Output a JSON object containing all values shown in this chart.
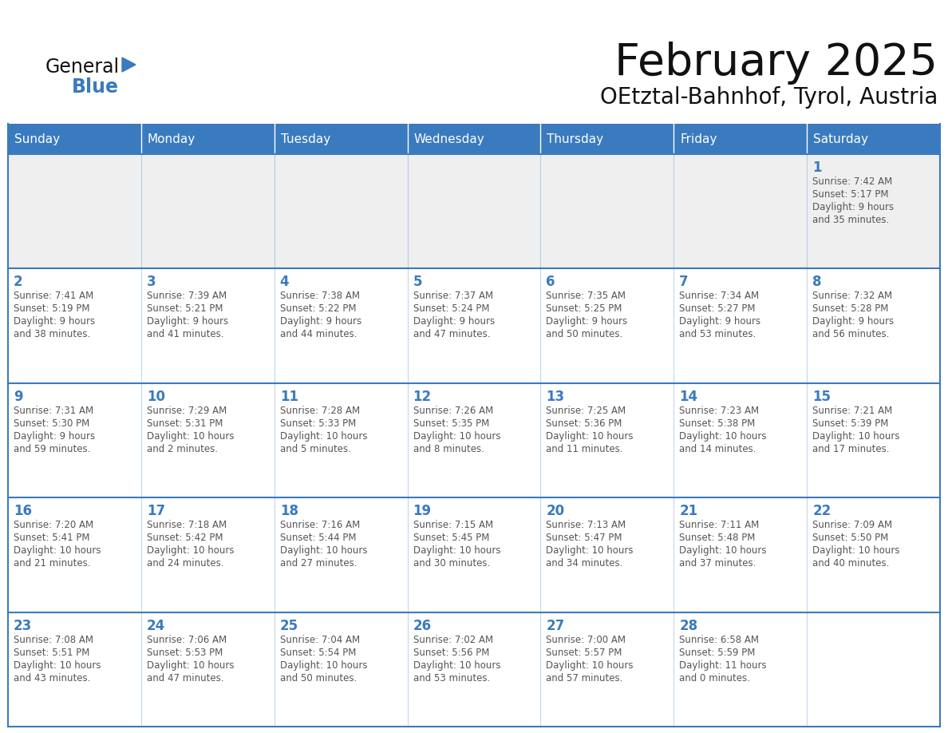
{
  "title": "February 2025",
  "subtitle": "OEtztal-Bahnhof, Tyrol, Austria",
  "days_of_week": [
    "Sunday",
    "Monday",
    "Tuesday",
    "Wednesday",
    "Thursday",
    "Friday",
    "Saturday"
  ],
  "header_bg": "#3a7abf",
  "header_text": "#ffffff",
  "cell_bg": "#ffffff",
  "row1_bg": "#efefef",
  "line_color": "#3a7abf",
  "day_num_color": "#3a7abf",
  "text_color": "#555555",
  "title_color": "#111111",
  "general_color": "#111111",
  "blue_color": "#3a7abf",
  "calendar_data": [
    [
      null,
      null,
      null,
      null,
      null,
      null,
      {
        "day": 1,
        "sunrise": "7:42 AM",
        "sunset": "5:17 PM",
        "daylight": "9 hours and 35 minutes."
      }
    ],
    [
      {
        "day": 2,
        "sunrise": "7:41 AM",
        "sunset": "5:19 PM",
        "daylight": "9 hours and 38 minutes."
      },
      {
        "day": 3,
        "sunrise": "7:39 AM",
        "sunset": "5:21 PM",
        "daylight": "9 hours and 41 minutes."
      },
      {
        "day": 4,
        "sunrise": "7:38 AM",
        "sunset": "5:22 PM",
        "daylight": "9 hours and 44 minutes."
      },
      {
        "day": 5,
        "sunrise": "7:37 AM",
        "sunset": "5:24 PM",
        "daylight": "9 hours and 47 minutes."
      },
      {
        "day": 6,
        "sunrise": "7:35 AM",
        "sunset": "5:25 PM",
        "daylight": "9 hours and 50 minutes."
      },
      {
        "day": 7,
        "sunrise": "7:34 AM",
        "sunset": "5:27 PM",
        "daylight": "9 hours and 53 minutes."
      },
      {
        "day": 8,
        "sunrise": "7:32 AM",
        "sunset": "5:28 PM",
        "daylight": "9 hours and 56 minutes."
      }
    ],
    [
      {
        "day": 9,
        "sunrise": "7:31 AM",
        "sunset": "5:30 PM",
        "daylight": "9 hours and 59 minutes."
      },
      {
        "day": 10,
        "sunrise": "7:29 AM",
        "sunset": "5:31 PM",
        "daylight": "10 hours and 2 minutes."
      },
      {
        "day": 11,
        "sunrise": "7:28 AM",
        "sunset": "5:33 PM",
        "daylight": "10 hours and 5 minutes."
      },
      {
        "day": 12,
        "sunrise": "7:26 AM",
        "sunset": "5:35 PM",
        "daylight": "10 hours and 8 minutes."
      },
      {
        "day": 13,
        "sunrise": "7:25 AM",
        "sunset": "5:36 PM",
        "daylight": "10 hours and 11 minutes."
      },
      {
        "day": 14,
        "sunrise": "7:23 AM",
        "sunset": "5:38 PM",
        "daylight": "10 hours and 14 minutes."
      },
      {
        "day": 15,
        "sunrise": "7:21 AM",
        "sunset": "5:39 PM",
        "daylight": "10 hours and 17 minutes."
      }
    ],
    [
      {
        "day": 16,
        "sunrise": "7:20 AM",
        "sunset": "5:41 PM",
        "daylight": "10 hours and 21 minutes."
      },
      {
        "day": 17,
        "sunrise": "7:18 AM",
        "sunset": "5:42 PM",
        "daylight": "10 hours and 24 minutes."
      },
      {
        "day": 18,
        "sunrise": "7:16 AM",
        "sunset": "5:44 PM",
        "daylight": "10 hours and 27 minutes."
      },
      {
        "day": 19,
        "sunrise": "7:15 AM",
        "sunset": "5:45 PM",
        "daylight": "10 hours and 30 minutes."
      },
      {
        "day": 20,
        "sunrise": "7:13 AM",
        "sunset": "5:47 PM",
        "daylight": "10 hours and 34 minutes."
      },
      {
        "day": 21,
        "sunrise": "7:11 AM",
        "sunset": "5:48 PM",
        "daylight": "10 hours and 37 minutes."
      },
      {
        "day": 22,
        "sunrise": "7:09 AM",
        "sunset": "5:50 PM",
        "daylight": "10 hours and 40 minutes."
      }
    ],
    [
      {
        "day": 23,
        "sunrise": "7:08 AM",
        "sunset": "5:51 PM",
        "daylight": "10 hours and 43 minutes."
      },
      {
        "day": 24,
        "sunrise": "7:06 AM",
        "sunset": "5:53 PM",
        "daylight": "10 hours and 47 minutes."
      },
      {
        "day": 25,
        "sunrise": "7:04 AM",
        "sunset": "5:54 PM",
        "daylight": "10 hours and 50 minutes."
      },
      {
        "day": 26,
        "sunrise": "7:02 AM",
        "sunset": "5:56 PM",
        "daylight": "10 hours and 53 minutes."
      },
      {
        "day": 27,
        "sunrise": "7:00 AM",
        "sunset": "5:57 PM",
        "daylight": "10 hours and 57 minutes."
      },
      {
        "day": 28,
        "sunrise": "6:58 AM",
        "sunset": "5:59 PM",
        "daylight": "11 hours and 0 minutes."
      },
      null
    ]
  ],
  "figsize": [
    11.88,
    9.18
  ],
  "dpi": 100
}
